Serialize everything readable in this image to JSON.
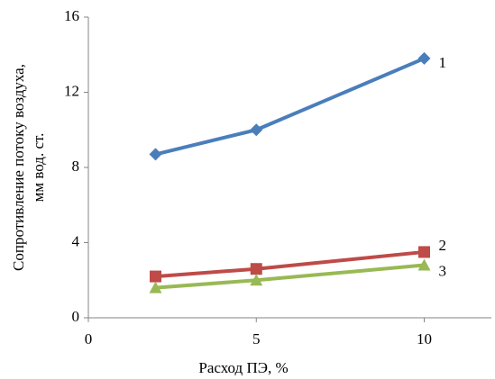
{
  "chart_data": {
    "type": "line",
    "ylabel": [
      "Сопротивление потоку воздуха,",
      "мм вод. ст."
    ],
    "xlabel": "Расход ПЭ, %",
    "x": [
      2,
      5,
      10
    ],
    "series": [
      {
        "name": "1",
        "color": "#4a7ebb",
        "marker": "diamond",
        "values": [
          8.7,
          10,
          13.8
        ]
      },
      {
        "name": "2",
        "color": "#be4b48",
        "marker": "square",
        "values": [
          2.2,
          2.6,
          3.5
        ]
      },
      {
        "name": "3",
        "color": "#98b954",
        "marker": "triangle",
        "values": [
          1.6,
          2.0,
          2.8
        ]
      }
    ],
    "xlim": [
      0,
      12
    ],
    "xticks": [
      0,
      5,
      10
    ],
    "ylim": [
      0,
      16
    ],
    "yticks": [
      0,
      4,
      8,
      12,
      16
    ]
  }
}
